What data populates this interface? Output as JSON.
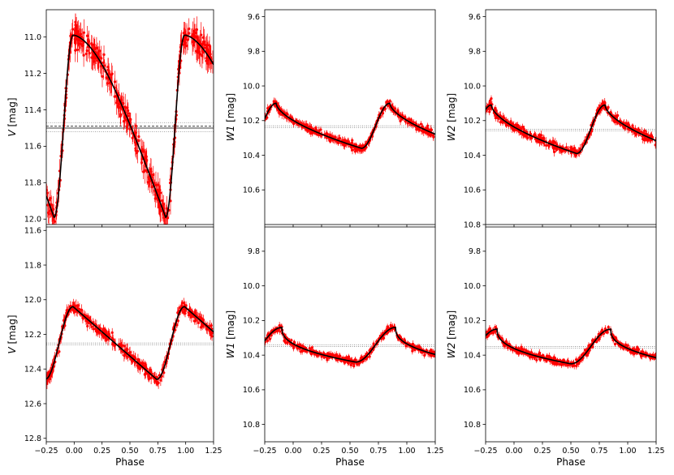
{
  "chart_data": [
    {
      "type": "scatter",
      "panel": "top-left",
      "xlabel": "",
      "ylabel_italic": "V",
      "ylabel_unit": " [mag]",
      "xlim": [
        -0.25,
        1.25
      ],
      "ylim": [
        12.03,
        10.85
      ],
      "xticks": [
        -0.25,
        0.0,
        0.25,
        0.5,
        0.75,
        1.0,
        1.25
      ],
      "xtick_labels_visible": false,
      "yticks": [
        11.0,
        11.2,
        11.4,
        11.6,
        11.8,
        12.0
      ],
      "ytick_labels": [
        "11.0",
        "11.2",
        "11.4",
        "11.6",
        "11.8",
        "12.0"
      ],
      "curve": {
        "mean": 11.49,
        "amp": 0.5,
        "min_phase": 0.82,
        "rise": 0.17,
        "steep": 1.5,
        "bump": 0.015
      },
      "hlines": [
        11.47,
        11.49,
        11.5,
        11.52
      ],
      "color": "#ff0000"
    },
    {
      "type": "scatter",
      "panel": "top-middle",
      "xlabel": "",
      "ylabel_italic": "W1",
      "ylabel_unit": " [mag]",
      "xlim": [
        -0.25,
        1.25
      ],
      "ylim": [
        10.8,
        9.56
      ],
      "xticks": [
        -0.25,
        0.0,
        0.25,
        0.5,
        0.75,
        1.0,
        1.25
      ],
      "xtick_labels_visible": false,
      "yticks": [
        9.6,
        9.8,
        10.0,
        10.2,
        10.4,
        10.6
      ],
      "ytick_labels": [
        "9.6",
        "9.8",
        "10.0",
        "10.2",
        "10.4",
        "10.6"
      ],
      "curve": {
        "mean": 10.23,
        "amp": 0.13,
        "min_phase": 0.6,
        "rise": 0.25,
        "steep": 0.6,
        "bump": 0.0
      },
      "hlines": [
        10.23,
        10.24
      ],
      "color": "#ff0000"
    },
    {
      "type": "scatter",
      "panel": "top-right",
      "xlabel": "",
      "ylabel_italic": "W2",
      "ylabel_unit": " [mag]",
      "xlim": [
        -0.25,
        1.25
      ],
      "ylim": [
        10.8,
        9.56
      ],
      "xticks": [
        -0.25,
        0.0,
        0.25,
        0.5,
        0.75,
        1.0,
        1.25
      ],
      "xtick_labels_visible": false,
      "yticks": [
        9.6,
        9.8,
        10.0,
        10.2,
        10.4,
        10.6,
        10.8
      ],
      "ytick_labels": [
        "9.6",
        "9.8",
        "10.0",
        "10.2",
        "10.4",
        "10.6",
        "10.8"
      ],
      "curve": {
        "mean": 10.25,
        "amp": 0.14,
        "min_phase": 0.55,
        "rise": 0.25,
        "steep": 0.6,
        "bump": 0.0
      },
      "hlines": [
        10.25,
        10.26
      ],
      "color": "#ff0000"
    },
    {
      "type": "scatter",
      "panel": "bottom-left",
      "xlabel": "Phase",
      "ylabel_italic": "V",
      "ylabel_unit": " [mag]",
      "xlim": [
        -0.25,
        1.25
      ],
      "ylim": [
        12.82,
        11.58
      ],
      "xticks": [
        -0.25,
        0.0,
        0.25,
        0.5,
        0.75,
        1.0,
        1.25
      ],
      "xtick_labels": [
        "−0.25",
        "0.00",
        "0.25",
        "0.50",
        "0.75",
        "1.00",
        "1.25"
      ],
      "xtick_labels_visible": true,
      "yticks": [
        11.6,
        11.8,
        12.0,
        12.2,
        12.4,
        12.6,
        12.8
      ],
      "ytick_labels": [
        "11.6",
        "11.8",
        "12.0",
        "12.2",
        "12.4",
        "12.6",
        "12.8"
      ],
      "curve": {
        "mean": 12.25,
        "amp": 0.21,
        "min_phase": 0.74,
        "rise": 0.25,
        "steep": 1.0,
        "bump": 0.0
      },
      "hlines": [
        12.25,
        12.26
      ],
      "color": "#ff0000"
    },
    {
      "type": "scatter",
      "panel": "bottom-middle",
      "xlabel": "Phase",
      "ylabel_italic": "W1",
      "ylabel_unit": " [mag]",
      "xlim": [
        -0.25,
        1.25
      ],
      "ylim": [
        10.9,
        9.66
      ],
      "xticks": [
        -0.25,
        0.0,
        0.25,
        0.5,
        0.75,
        1.0,
        1.25
      ],
      "xtick_labels": [
        "−0.25",
        "0.00",
        "0.25",
        "0.50",
        "0.75",
        "1.00",
        "1.25"
      ],
      "xtick_labels_visible": true,
      "yticks": [
        9.8,
        10.0,
        10.2,
        10.4,
        10.6,
        10.8
      ],
      "ytick_labels": [
        "9.8",
        "10.0",
        "10.2",
        "10.4",
        "10.6",
        "10.8"
      ],
      "curve": {
        "mean": 10.34,
        "amp": 0.1,
        "min_phase": 0.55,
        "rise": 0.35,
        "steep": 0.4,
        "bump": 0.0
      },
      "hlines": [
        10.34,
        10.35
      ],
      "color": "#ff0000"
    },
    {
      "type": "scatter",
      "panel": "bottom-right",
      "xlabel": "Phase",
      "ylabel_italic": "W2",
      "ylabel_unit": " [mag]",
      "xlim": [
        -0.25,
        1.25
      ],
      "ylim": [
        10.9,
        9.66
      ],
      "xticks": [
        -0.25,
        0.0,
        0.25,
        0.5,
        0.75,
        1.0,
        1.25
      ],
      "xtick_labels": [
        "−0.25",
        "0.00",
        "0.25",
        "0.50",
        "0.75",
        "1.00",
        "1.25"
      ],
      "xtick_labels_visible": true,
      "yticks": [
        9.8,
        10.0,
        10.2,
        10.4,
        10.6,
        10.8
      ],
      "ytick_labels": [
        "9.8",
        "10.0",
        "10.2",
        "10.4",
        "10.6",
        "10.8"
      ],
      "curve": {
        "mean": 10.35,
        "amp": 0.1,
        "min_phase": 0.5,
        "rise": 0.35,
        "steep": 0.4,
        "bump": 0.0
      },
      "hlines": [
        10.35,
        10.36
      ],
      "color": "#ff0000"
    }
  ]
}
